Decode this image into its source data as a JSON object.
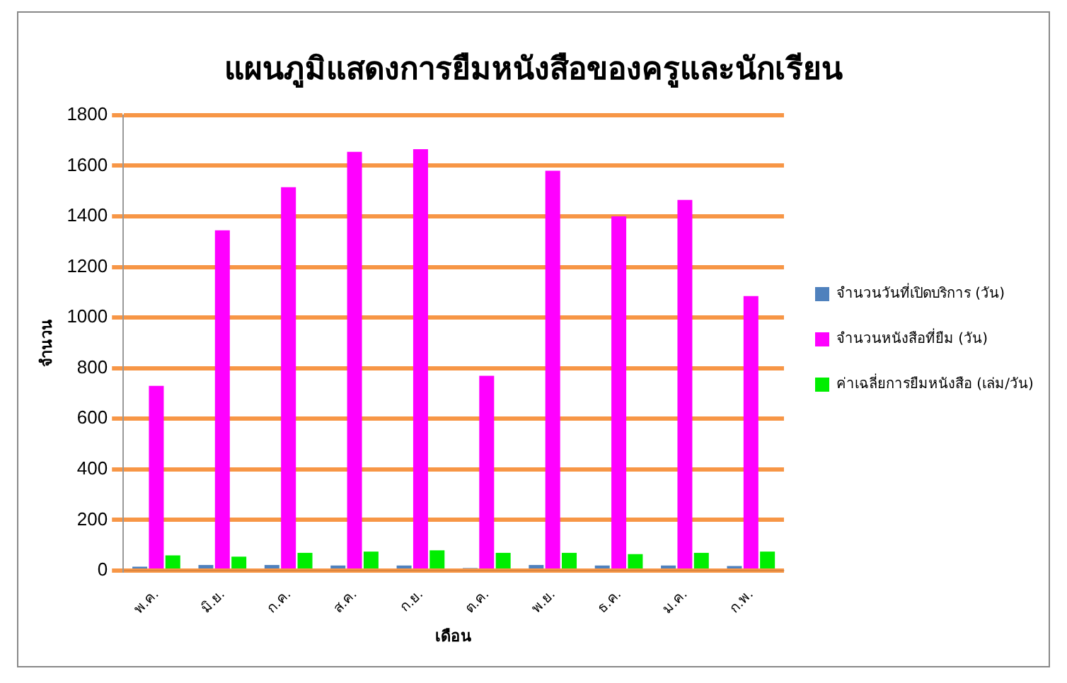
{
  "chart_data": {
    "type": "bar",
    "title": "แผนภูมิแสดงการยืมหนังสือของครูและนักเรียน",
    "xlabel": "เดือน",
    "ylabel": "จำนวน",
    "categories": [
      "พ.ค.",
      "มิ.ย.",
      "ก.ค.",
      "ส.ค.",
      "ก.ย.",
      "ต.ค.",
      "พ.ย.",
      "ธ.ค.",
      "ม.ค.",
      "ก.พ."
    ],
    "series": [
      {
        "name": "จำนวนวันที่เปิดบริการ (วัน)",
        "color": "#4f81bd",
        "values": [
          15,
          22,
          22,
          20,
          20,
          10,
          22,
          20,
          20,
          18
        ]
      },
      {
        "name": "จำนวนหนังสือที่ยืม (วัน)",
        "color": "#ff00ff",
        "values": [
          730,
          1345,
          1515,
          1655,
          1665,
          770,
          1580,
          1400,
          1465,
          1085
        ]
      },
      {
        "name": "ค่าเฉลี่ยการยืมหนังสือ (เล่ม/วัน)",
        "color": "#00ee00",
        "values": [
          60,
          55,
          70,
          75,
          80,
          70,
          70,
          65,
          70,
          75
        ]
      }
    ],
    "ylim": [
      0,
      1800
    ],
    "yticks": [
      0,
      200,
      400,
      600,
      800,
      1000,
      1200,
      1400,
      1600,
      1800
    ],
    "grid": "y",
    "legend": "right"
  }
}
